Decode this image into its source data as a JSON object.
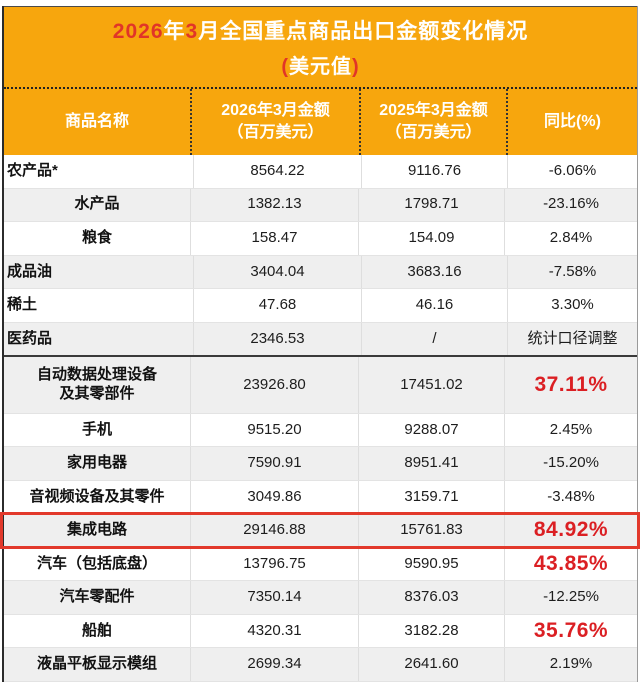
{
  "colors": {
    "accent_orange": "#F7A60D",
    "title_red": "#E13528",
    "value_red": "#DB1F23",
    "highlight_border": "#E2392B",
    "row_alt": "#EFEFEF"
  },
  "chart_data": {
    "type": "table",
    "title": "2026年3月全国重点商品出口金额变化情况",
    "subtitle": "(美元值)",
    "columns": [
      {
        "lines": [
          "商品名称"
        ]
      },
      {
        "lines": [
          "2026年3月金额",
          "（百万美元）"
        ]
      },
      {
        "lines": [
          "2025年3月金额",
          "（百万美元）"
        ]
      },
      {
        "lines": [
          "同比(%)"
        ]
      }
    ],
    "rows": [
      {
        "name": "农产品*",
        "align": "left",
        "v2026": "8564.22",
        "v2025": "9116.76",
        "yoy": "-6.06%",
        "red": false,
        "shade": false
      },
      {
        "name": "水产品",
        "align": "center",
        "v2026": "1382.13",
        "v2025": "1798.71",
        "yoy": "-23.16%",
        "red": false,
        "shade": true
      },
      {
        "name": "粮食",
        "align": "center",
        "v2026": "158.47",
        "v2025": "154.09",
        "yoy": "2.84%",
        "red": false,
        "shade": false
      },
      {
        "name": "成品油",
        "align": "left",
        "v2026": "3404.04",
        "v2025": "3683.16",
        "yoy": "-7.58%",
        "red": false,
        "shade": true
      },
      {
        "name": "稀土",
        "align": "left",
        "v2026": "47.68",
        "v2025": "46.16",
        "yoy": "3.30%",
        "red": false,
        "shade": false
      },
      {
        "name": "医药品",
        "align": "left",
        "v2026": "2346.53",
        "v2025": "/",
        "yoy": "统计口径调整",
        "red": false,
        "shade": true,
        "divider_below": true
      },
      {
        "name": "自动数据处理设备\n及其零部件",
        "align": "center",
        "v2026": "23926.80",
        "v2025": "17451.02",
        "yoy": "37.11%",
        "red": true,
        "shade": true,
        "tall": true
      },
      {
        "name": "手机",
        "align": "center",
        "v2026": "9515.20",
        "v2025": "9288.07",
        "yoy": "2.45%",
        "red": false,
        "shade": false
      },
      {
        "name": "家用电器",
        "align": "center",
        "v2026": "7590.91",
        "v2025": "8951.41",
        "yoy": "-15.20%",
        "red": false,
        "shade": true
      },
      {
        "name": "音视频设备及其零件",
        "align": "center",
        "v2026": "3049.86",
        "v2025": "3159.71",
        "yoy": "-3.48%",
        "red": false,
        "shade": false
      },
      {
        "name": "集成电路",
        "align": "center",
        "v2026": "29146.88",
        "v2025": "15761.83",
        "yoy": "84.92%",
        "red": true,
        "shade": true,
        "highlighted": true
      },
      {
        "name": "汽车（包括底盘）",
        "align": "center",
        "v2026": "13796.75",
        "v2025": "9590.95",
        "yoy": "43.85%",
        "red": true,
        "shade": false
      },
      {
        "name": "汽车零配件",
        "align": "center",
        "v2026": "7350.14",
        "v2025": "8376.03",
        "yoy": "-12.25%",
        "red": false,
        "shade": true
      },
      {
        "name": "船舶",
        "align": "center",
        "v2026": "4320.31",
        "v2025": "3182.28",
        "yoy": "35.76%",
        "red": true,
        "shade": false
      },
      {
        "name": "液晶平板显示模组",
        "align": "center",
        "v2026": "2699.34",
        "v2025": "2641.60",
        "yoy": "2.19%",
        "red": false,
        "shade": true
      }
    ]
  }
}
